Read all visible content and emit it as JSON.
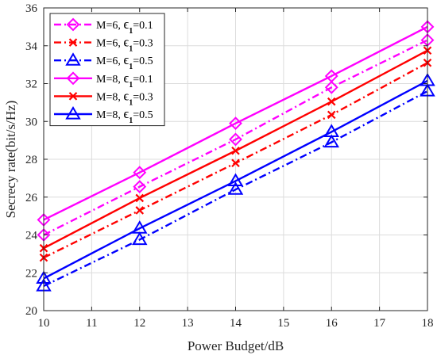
{
  "chart_data": {
    "type": "line",
    "xlabel": "Power Budget/dB",
    "ylabel": "Secrecy rate(bit/s/Hz)",
    "xlim": [
      10,
      18
    ],
    "ylim": [
      20,
      36
    ],
    "xticks": [
      10,
      11,
      12,
      13,
      14,
      15,
      16,
      17,
      18
    ],
    "yticks": [
      20,
      22,
      24,
      26,
      28,
      30,
      32,
      34,
      36
    ],
    "grid": true,
    "legend_position": "top-left",
    "x": [
      10,
      12,
      14,
      16,
      18
    ],
    "series": [
      {
        "name": "M=6, ϵ1=0.1",
        "label_main": "M=6, ",
        "label_eps": "ϵ",
        "label_sub": "1",
        "label_tail": "=0.1",
        "color": "#ff00ff",
        "dash": "dashdot",
        "marker": "diamond",
        "values": [
          24.0,
          26.55,
          29.05,
          31.8,
          34.3
        ]
      },
      {
        "name": "M=6, ϵ1=0.3",
        "label_main": "M=6, ",
        "label_eps": "ϵ",
        "label_sub": "1",
        "label_tail": "=0.3",
        "color": "#ff0000",
        "dash": "dashdot",
        "marker": "x",
        "values": [
          22.8,
          25.3,
          27.8,
          30.35,
          33.1
        ]
      },
      {
        "name": "M=6, ϵ1=0.5",
        "label_main": "M=6, ",
        "label_eps": "ϵ",
        "label_sub": "1",
        "label_tail": "=0.5",
        "color": "#0000ff",
        "dash": "dashdot",
        "marker": "triangle",
        "values": [
          21.3,
          23.75,
          26.4,
          28.9,
          31.6
        ]
      },
      {
        "name": "M=8, ϵ1=0.1",
        "label_main": "M=8, ",
        "label_eps": "ϵ",
        "label_sub": "1",
        "label_tail": "=0.1",
        "color": "#ff00ff",
        "dash": "solid",
        "marker": "diamond",
        "values": [
          24.8,
          27.3,
          29.9,
          32.4,
          35.0
        ]
      },
      {
        "name": "M=8, ϵ1=0.3",
        "label_main": "M=8, ",
        "label_eps": "ϵ",
        "label_sub": "1",
        "label_tail": "=0.3",
        "color": "#ff0000",
        "dash": "solid",
        "marker": "x",
        "values": [
          23.3,
          25.95,
          28.45,
          31.05,
          33.75
        ]
      },
      {
        "name": "M=8, ϵ1=0.5",
        "label_main": "M=8, ",
        "label_eps": "ϵ",
        "label_sub": "1",
        "label_tail": "=0.5",
        "color": "#0000ff",
        "dash": "solid",
        "marker": "triangle",
        "values": [
          21.7,
          24.35,
          26.85,
          29.45,
          32.15
        ]
      }
    ]
  }
}
